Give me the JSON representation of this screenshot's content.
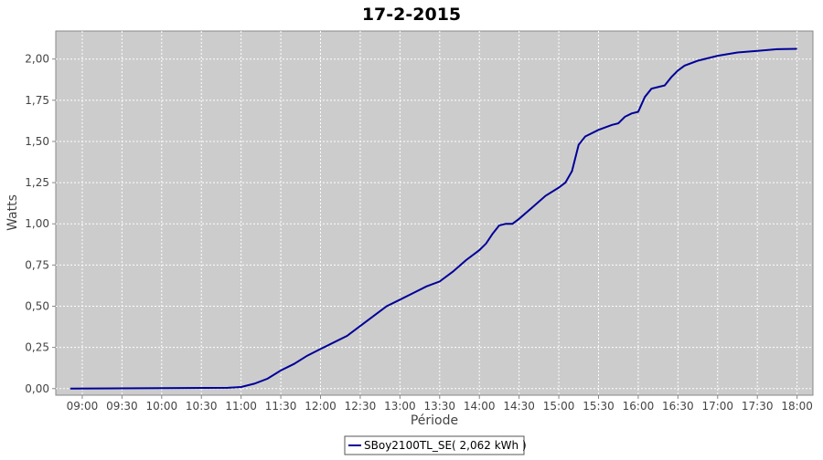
{
  "chart_data": {
    "type": "line",
    "title": "17-2-2015",
    "y_label": "Watts",
    "x_label": "Période",
    "x": [
      "08:51",
      "10:50",
      "11:00",
      "11:10",
      "11:20",
      "11:30",
      "11:40",
      "11:50",
      "12:00",
      "12:10",
      "12:20",
      "12:30",
      "12:40",
      "12:50",
      "13:00",
      "13:10",
      "13:20",
      "13:30",
      "13:40",
      "13:50",
      "14:00",
      "14:05",
      "14:10",
      "14:15",
      "14:20",
      "14:25",
      "14:30",
      "14:40",
      "14:50",
      "15:00",
      "15:05",
      "15:10",
      "15:15",
      "15:20",
      "15:30",
      "15:40",
      "15:45",
      "15:50",
      "15:55",
      "16:00",
      "16:05",
      "16:10",
      "16:15",
      "16:20",
      "16:25",
      "16:30",
      "16:35",
      "16:45",
      "17:00",
      "17:15",
      "17:30",
      "17:45",
      "18:00"
    ],
    "series": [
      {
        "name": "SBoy2100TL_SE( 2,062 kWh )",
        "color": "#000099",
        "values": [
          0,
          0.005,
          0.01,
          0.03,
          0.06,
          0.11,
          0.15,
          0.2,
          0.24,
          0.28,
          0.32,
          0.38,
          0.44,
          0.5,
          0.54,
          0.58,
          0.62,
          0.65,
          0.71,
          0.78,
          0.84,
          0.88,
          0.94,
          0.99,
          1.0,
          1.0,
          1.03,
          1.1,
          1.17,
          1.22,
          1.25,
          1.32,
          1.48,
          1.53,
          1.57,
          1.6,
          1.61,
          1.65,
          1.67,
          1.68,
          1.77,
          1.82,
          1.83,
          1.84,
          1.89,
          1.93,
          1.96,
          1.99,
          2.02,
          2.04,
          2.05,
          2.06,
          2.062
        ]
      }
    ],
    "xlim": [
      "08:40",
      "18:12"
    ],
    "xticks": [
      "09:00",
      "09:30",
      "10:00",
      "10:30",
      "11:00",
      "11:30",
      "12:00",
      "12:30",
      "13:00",
      "13:30",
      "14:00",
      "14:30",
      "15:00",
      "15:30",
      "16:00",
      "16:30",
      "17:00",
      "17:30",
      "18:00"
    ],
    "ylim": [
      -0.04,
      2.17
    ],
    "yticks": [
      {
        "value": 0,
        "label": "0,00"
      },
      {
        "value": 0.25,
        "label": "0,25"
      },
      {
        "value": 0.5,
        "label": "0,50"
      },
      {
        "value": 0.75,
        "label": "0,75"
      },
      {
        "value": 1,
        "label": "1,00"
      },
      {
        "value": 1.25,
        "label": "1,25"
      },
      {
        "value": 1.5,
        "label": "1,50"
      },
      {
        "value": 1.75,
        "label": "1,75"
      },
      {
        "value": 2,
        "label": "2,00"
      }
    ],
    "grid": true,
    "background": "#cccccc",
    "legend": "bottom"
  }
}
